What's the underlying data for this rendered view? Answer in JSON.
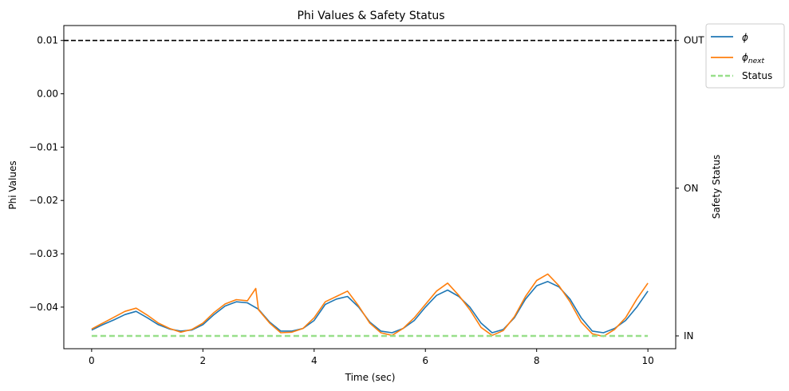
{
  "chart_data": {
    "type": "line",
    "title": "Phi Values & Safety Status",
    "xlabel": "Time (sec)",
    "ylabel": "Phi Values",
    "ylabel_right": "Safety Status",
    "xlim": [
      -0.5,
      10.5
    ],
    "ylim": [
      -0.0478,
      0.0128
    ],
    "x_ticks": [
      0,
      2,
      4,
      6,
      8,
      10
    ],
    "x_tick_labels": [
      "0",
      "2",
      "4",
      "6",
      "8",
      "10"
    ],
    "y_ticks": [
      0.01,
      0.0,
      -0.01,
      -0.02,
      -0.03,
      -0.04
    ],
    "y_tick_labels": [
      "0.01",
      "0.00",
      "−0.01",
      "−0.02",
      "−0.03",
      "−0.04"
    ],
    "right_ticks": [
      "OUT",
      "ON",
      "IN"
    ],
    "threshold": 0.01,
    "grid": false,
    "legend_position": "outside-top-right",
    "legend": {
      "phi_base": "ϕ",
      "phi_next_base": "ϕ",
      "phi_next_sub": "next",
      "status": "Status"
    },
    "series": [
      {
        "key": "phi",
        "color": "#1f77b4",
        "x": [
          0,
          0.2,
          0.4,
          0.6,
          0.8,
          1.0,
          1.2,
          1.4,
          1.6,
          1.8,
          2.0,
          2.2,
          2.4,
          2.6,
          2.8,
          3.0,
          3.2,
          3.4,
          3.6,
          3.8,
          4.0,
          4.2,
          4.4,
          4.6,
          4.8,
          5.0,
          5.2,
          5.4,
          5.6,
          5.8,
          6.0,
          6.2,
          6.4,
          6.6,
          6.8,
          7.0,
          7.2,
          7.4,
          7.6,
          7.8,
          8.0,
          8.2,
          8.4,
          8.6,
          8.8,
          9.0,
          9.2,
          9.4,
          9.6,
          9.8,
          10.0
        ],
        "values": [
          -0.0443,
          -0.0433,
          -0.0424,
          -0.0414,
          -0.0408,
          -0.042,
          -0.0433,
          -0.0441,
          -0.0445,
          -0.0443,
          -0.0433,
          -0.0414,
          -0.0398,
          -0.039,
          -0.0392,
          -0.0404,
          -0.0428,
          -0.0445,
          -0.0445,
          -0.044,
          -0.0425,
          -0.0395,
          -0.0385,
          -0.038,
          -0.04,
          -0.0428,
          -0.0445,
          -0.0448,
          -0.044,
          -0.0425,
          -0.04,
          -0.0378,
          -0.0368,
          -0.038,
          -0.04,
          -0.043,
          -0.0448,
          -0.0442,
          -0.042,
          -0.0385,
          -0.036,
          -0.0352,
          -0.0362,
          -0.0385,
          -0.042,
          -0.0445,
          -0.0448,
          -0.044,
          -0.0425,
          -0.04,
          -0.037
        ]
      },
      {
        "key": "phi_next",
        "color": "#ff7f0e",
        "x": [
          0,
          0.2,
          0.4,
          0.6,
          0.8,
          1.0,
          1.2,
          1.4,
          1.6,
          1.8,
          2.0,
          2.2,
          2.4,
          2.6,
          2.8,
          2.95,
          3.0,
          3.2,
          3.4,
          3.6,
          3.8,
          4.0,
          4.2,
          4.4,
          4.6,
          4.8,
          5.0,
          5.2,
          5.4,
          5.6,
          5.8,
          6.0,
          6.2,
          6.4,
          6.6,
          6.8,
          7.0,
          7.2,
          7.4,
          7.6,
          7.8,
          8.0,
          8.2,
          8.4,
          8.6,
          8.8,
          9.0,
          9.2,
          9.4,
          9.6,
          9.8,
          10.0
        ],
        "values": [
          -0.0441,
          -0.043,
          -0.0419,
          -0.0408,
          -0.0402,
          -0.0415,
          -0.043,
          -0.044,
          -0.0447,
          -0.0442,
          -0.043,
          -0.041,
          -0.0394,
          -0.0386,
          -0.0388,
          -0.0365,
          -0.0405,
          -0.043,
          -0.0448,
          -0.0447,
          -0.044,
          -0.042,
          -0.039,
          -0.038,
          -0.037,
          -0.0398,
          -0.043,
          -0.0448,
          -0.0453,
          -0.044,
          -0.042,
          -0.0395,
          -0.037,
          -0.0355,
          -0.0378,
          -0.0405,
          -0.0438,
          -0.0453,
          -0.0444,
          -0.0418,
          -0.038,
          -0.035,
          -0.0338,
          -0.036,
          -0.039,
          -0.0428,
          -0.045,
          -0.0455,
          -0.0442,
          -0.042,
          -0.0385,
          -0.0355
        ]
      },
      {
        "key": "status",
        "color": "#98df8a",
        "dashed": true,
        "x": [
          0,
          10
        ],
        "values": [
          -0.0454,
          -0.0454
        ]
      }
    ]
  }
}
